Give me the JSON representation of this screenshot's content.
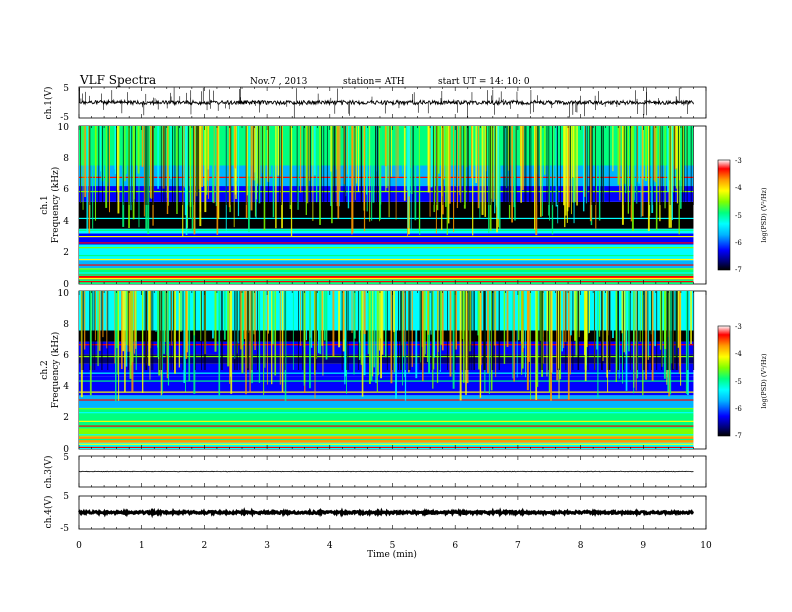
{
  "header": {
    "title": "VLF  Spectra",
    "date": "Nov.7  , 2013",
    "station": "station= ATH",
    "start": "start  UT  =   14: 10: 0"
  },
  "colors": {
    "background": "#ffffff",
    "trace": "#000000",
    "colormap": [
      "#000000",
      "#00007a",
      "#0000ff",
      "#00b4ff",
      "#00ffff",
      "#00ff7f",
      "#7fff00",
      "#ffff00",
      "#ff9a00",
      "#ff0000",
      "#ffffff"
    ]
  },
  "chart_data": [
    {
      "type": "line",
      "id": "ch1",
      "ylabel": "ch.1(V)",
      "ylim": [
        -5,
        5
      ],
      "ytick_labels": [
        "5",
        "-5"
      ],
      "xlim": [
        0,
        10
      ],
      "x_extent": [
        0,
        9.8
      ],
      "baseline": 0,
      "description_level": "waveform near 0 V with frequent spikes"
    },
    {
      "type": "heatmap",
      "id": "ch1-spec",
      "ylabel": "ch.1\nFrequency  (kHz)",
      "xlim": [
        0,
        10
      ],
      "ylim": [
        0,
        10
      ],
      "ytick_labels": [
        "10",
        "8",
        "6",
        "4",
        "2",
        "0"
      ],
      "x_extent": [
        0,
        9.8
      ],
      "colorbar": {
        "label": "log(PSD) (V²/Hz)",
        "range": [
          -7,
          -3
        ],
        "tick_labels": [
          "-3",
          "-4",
          "-5",
          "-6",
          "-7"
        ]
      }
    },
    {
      "type": "heatmap",
      "id": "ch2-spec",
      "ylabel": "ch.2\nFrequency  (kHz)",
      "xlim": [
        0,
        10
      ],
      "ylim": [
        0,
        10
      ],
      "ytick_labels": [
        "10",
        "8",
        "6",
        "4",
        "2",
        "0"
      ],
      "x_extent": [
        0,
        9.8
      ],
      "colorbar": {
        "label": "log(PSD) (V²/Hz)",
        "range": [
          -7,
          -3
        ],
        "tick_labels": [
          "-3",
          "-4",
          "-5",
          "-6",
          "-7"
        ]
      }
    },
    {
      "type": "line",
      "id": "ch3",
      "ylabel": "ch.3(V)",
      "ylim": [
        -5,
        5
      ],
      "ytick_labels": [
        "5"
      ],
      "xlim": [
        0,
        10
      ],
      "x_extent": [
        0,
        9.8
      ],
      "baseline": 0
    },
    {
      "type": "line",
      "id": "ch4",
      "ylabel": "ch.4(V)",
      "ylim": [
        -5,
        5
      ],
      "ytick_labels": [
        "5",
        "-5"
      ],
      "xlim": [
        0,
        10
      ],
      "x_extent": [
        0,
        9.8
      ],
      "baseline": 0
    }
  ],
  "xaxis": {
    "label": "Time  (min)",
    "ticks": [
      "0",
      "1",
      "2",
      "3",
      "4",
      "5",
      "6",
      "7",
      "8",
      "9",
      "10"
    ]
  }
}
